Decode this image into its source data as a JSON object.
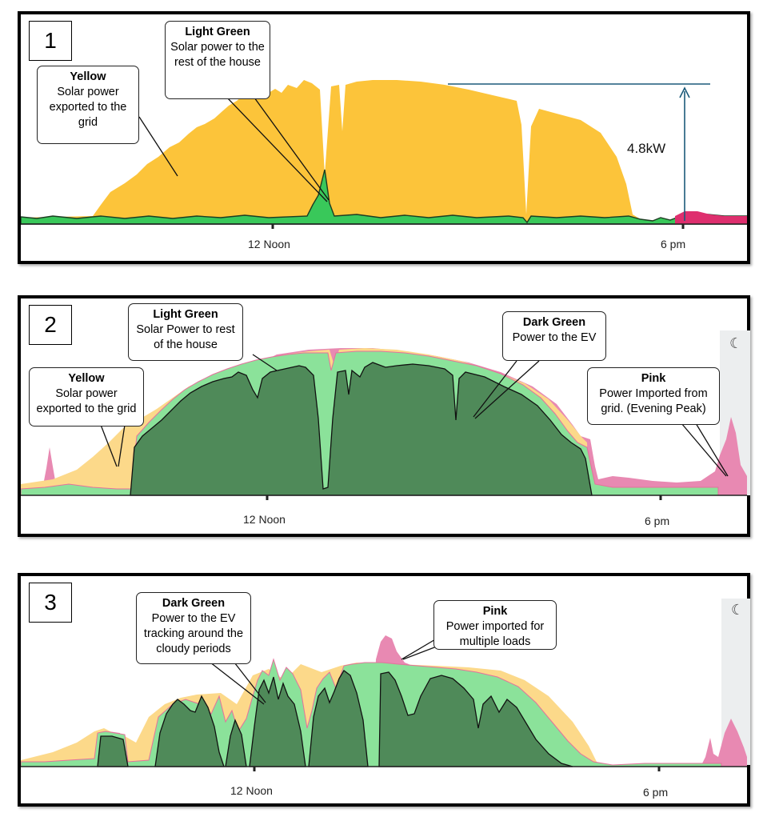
{
  "chart_data": [
    {
      "type": "area",
      "panel_number": "1",
      "x_ticks": [
        "12 Noon",
        "6 pm"
      ],
      "colors": {
        "yellow": "#fcc43a",
        "light_green": "#39c85a",
        "pink": "#de2f6e"
      },
      "series": [
        {
          "name": "Yellow",
          "description": "Solar power exported to the grid"
        },
        {
          "name": "Light Green",
          "description": "Solar power to the rest of the house"
        }
      ],
      "annotations": [
        {
          "title": "Yellow",
          "text": "Solar power exported to the grid"
        },
        {
          "title": "Light Green",
          "text": "Solar power to the rest of the house"
        }
      ],
      "peak_label": "4.8kW",
      "peak_value_kw": 4.8
    },
    {
      "type": "area",
      "panel_number": "2",
      "x_ticks": [
        "12 Noon",
        "6 pm"
      ],
      "colors": {
        "yellow": "#fcd98a",
        "light_green": "#8be29a",
        "dark_green": "#4f8a59",
        "pink": "#e889b2"
      },
      "series": [
        {
          "name": "Yellow",
          "description": "Solar power exported to the grid"
        },
        {
          "name": "Light Green",
          "description": "Solar Power to rest of the house"
        },
        {
          "name": "Dark Green",
          "description": "Power to the EV"
        },
        {
          "name": "Pink",
          "description": "Power Imported from grid. (Evening Peak)"
        }
      ],
      "annotations": [
        {
          "title": "Light Green",
          "text": "Solar Power to rest of the house"
        },
        {
          "title": "Yellow",
          "text": "Solar power exported to the grid"
        },
        {
          "title": "Dark Green",
          "text": "Power to the EV"
        },
        {
          "title": "Pink",
          "text": "Power Imported from grid.  (Evening Peak)"
        }
      ]
    },
    {
      "type": "area",
      "panel_number": "3",
      "x_ticks": [
        "12 Noon",
        "6 pm"
      ],
      "colors": {
        "yellow": "#fcd98a",
        "light_green": "#8be29a",
        "dark_green": "#4f8a59",
        "pink": "#e889b2"
      },
      "series": [
        {
          "name": "Dark Green",
          "description": "Power to the EV tracking around the cloudy periods"
        },
        {
          "name": "Pink",
          "description": "Power imported for multiple loads"
        }
      ],
      "annotations": [
        {
          "title": "Dark Green",
          "text": "Power to the EV tracking around the cloudy periods"
        },
        {
          "title": "Pink",
          "text": "Power imported for multiple loads"
        }
      ]
    }
  ],
  "icons": {
    "night": "moon-icon"
  }
}
